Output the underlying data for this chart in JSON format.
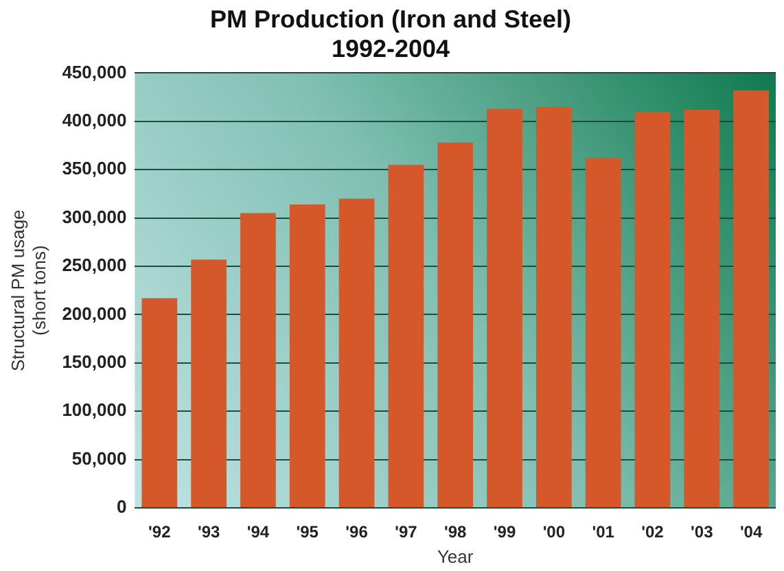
{
  "chart_data": {
    "type": "bar",
    "title": "PM Production (Iron and Steel)",
    "subtitle": "1992-2004",
    "xlabel": "Year",
    "ylabel": "Structural PM usage (short tons)",
    "categories": [
      "'92",
      "'93",
      "'94",
      "'95",
      "'96",
      "'97",
      "'98",
      "'99",
      "'00",
      "'01",
      "'02",
      "'03",
      "'04"
    ],
    "values": [
      217000,
      257000,
      305000,
      314000,
      320000,
      355000,
      378000,
      413000,
      415000,
      362000,
      410000,
      412000,
      432000
    ],
    "color": "#d4582a",
    "ylim": [
      0,
      450000
    ],
    "yticks": [
      0,
      {
        "value": 50000,
        "label": "50,000"
      },
      {
        "value": 100000,
        "label": "100,000"
      },
      {
        "value": 150000,
        "label": "150,000"
      },
      {
        "value": 200000,
        "label": "200,000"
      },
      {
        "value": 250000,
        "label": "250,000"
      },
      {
        "value": 300000,
        "label": "300,000"
      },
      {
        "value": 350000,
        "label": "350,000"
      },
      {
        "value": 400000,
        "label": "400,000"
      },
      {
        "value": 450000,
        "label": "450,000"
      }
    ],
    "grid": "y"
  }
}
